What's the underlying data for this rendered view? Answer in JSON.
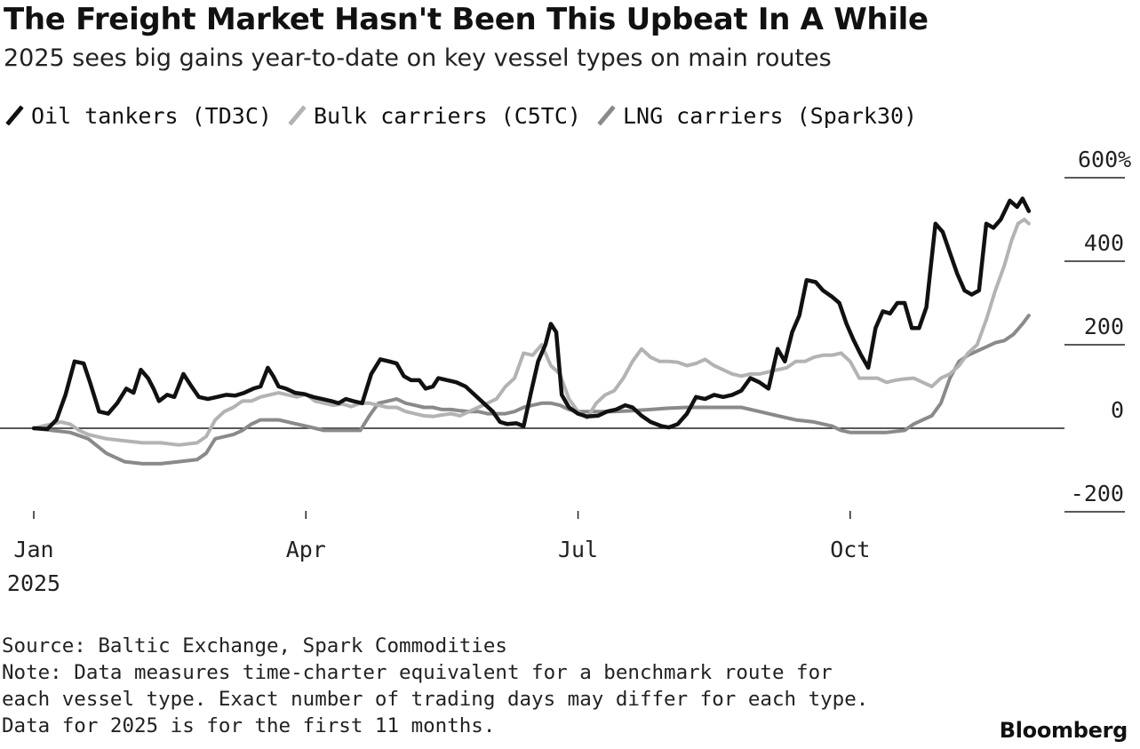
{
  "header": {
    "title": "The Freight Market Hasn't Been This Upbeat In A While",
    "subtitle": "2025 sees big gains year-to-date on key vessel types on main routes"
  },
  "footer": {
    "source": "Source: Baltic Exchange, Spark Commodities",
    "note_lines": [
      "Note: Data measures time-charter equivalent for a benchmark route for",
      "each vessel type. Exact number of trading days may differ for each type.",
      "Data for 2025 is for the first 11 months."
    ],
    "brand": "Bloomberg"
  },
  "chart_data": {
    "type": "line",
    "title": "The Freight Market Hasn't Been This Upbeat In A While",
    "subtitle": "2025 sees big gains year-to-date on key vessel types on main routes",
    "ylabel": "%",
    "ylim": [
      -200,
      600
    ],
    "yticks": [
      -200,
      0,
      200,
      400,
      600
    ],
    "ytick_labels": [
      "-200",
      "0",
      "200",
      "400",
      "600%"
    ],
    "xlim": [
      0,
      11
    ],
    "xticks": [
      0,
      3,
      6,
      9
    ],
    "xtick_labels": [
      "Jan",
      "Apr",
      "Jul",
      "Oct"
    ],
    "xtick_sublabels": [
      "2025",
      "",
      "",
      ""
    ],
    "legend_position": "top-left",
    "series": [
      {
        "name": "Oil tankers (TD3C)",
        "color": "#111111",
        "points": [
          [
            0.0,
            0
          ],
          [
            0.15,
            -2
          ],
          [
            0.25,
            20
          ],
          [
            0.35,
            80
          ],
          [
            0.45,
            160
          ],
          [
            0.55,
            155
          ],
          [
            0.62,
            110
          ],
          [
            0.72,
            40
          ],
          [
            0.82,
            35
          ],
          [
            0.92,
            60
          ],
          [
            1.02,
            95
          ],
          [
            1.1,
            85
          ],
          [
            1.18,
            140
          ],
          [
            1.26,
            120
          ],
          [
            1.32,
            95
          ],
          [
            1.38,
            65
          ],
          [
            1.47,
            80
          ],
          [
            1.55,
            75
          ],
          [
            1.65,
            130
          ],
          [
            1.74,
            100
          ],
          [
            1.82,
            75
          ],
          [
            1.92,
            70
          ],
          [
            2.02,
            75
          ],
          [
            2.12,
            80
          ],
          [
            2.22,
            78
          ],
          [
            2.32,
            85
          ],
          [
            2.42,
            95
          ],
          [
            2.5,
            100
          ],
          [
            2.58,
            145
          ],
          [
            2.64,
            125
          ],
          [
            2.7,
            100
          ],
          [
            2.78,
            95
          ],
          [
            2.88,
            85
          ],
          [
            2.98,
            82
          ],
          [
            3.08,
            75
          ],
          [
            3.18,
            70
          ],
          [
            3.28,
            65
          ],
          [
            3.36,
            60
          ],
          [
            3.44,
            70
          ],
          [
            3.52,
            65
          ],
          [
            3.62,
            60
          ],
          [
            3.72,
            130
          ],
          [
            3.82,
            165
          ],
          [
            3.92,
            160
          ],
          [
            4.0,
            155
          ],
          [
            4.08,
            125
          ],
          [
            4.16,
            115
          ],
          [
            4.25,
            115
          ],
          [
            4.32,
            95
          ],
          [
            4.4,
            100
          ],
          [
            4.46,
            120
          ],
          [
            4.56,
            115
          ],
          [
            4.66,
            110
          ],
          [
            4.76,
            100
          ],
          [
            4.86,
            80
          ],
          [
            4.96,
            60
          ],
          [
            5.06,
            40
          ],
          [
            5.14,
            15
          ],
          [
            5.22,
            10
          ],
          [
            5.32,
            12
          ],
          [
            5.4,
            5
          ],
          [
            5.48,
            85
          ],
          [
            5.56,
            160
          ],
          [
            5.64,
            200
          ],
          [
            5.7,
            250
          ],
          [
            5.76,
            230
          ],
          [
            5.82,
            80
          ],
          [
            5.9,
            50
          ],
          [
            6.0,
            35
          ],
          [
            6.1,
            28
          ],
          [
            6.22,
            30
          ],
          [
            6.32,
            40
          ],
          [
            6.42,
            45
          ],
          [
            6.52,
            55
          ],
          [
            6.6,
            50
          ],
          [
            6.7,
            30
          ],
          [
            6.8,
            15
          ],
          [
            6.92,
            5
          ],
          [
            7.0,
            2
          ],
          [
            7.1,
            10
          ],
          [
            7.2,
            35
          ],
          [
            7.3,
            75
          ],
          [
            7.4,
            70
          ],
          [
            7.5,
            80
          ],
          [
            7.6,
            75
          ],
          [
            7.7,
            80
          ],
          [
            7.8,
            90
          ],
          [
            7.9,
            120
          ],
          [
            8.0,
            110
          ],
          [
            8.1,
            95
          ],
          [
            8.2,
            190
          ],
          [
            8.28,
            160
          ],
          [
            8.36,
            230
          ],
          [
            8.44,
            270
          ],
          [
            8.52,
            355
          ],
          [
            8.62,
            350
          ],
          [
            8.7,
            330
          ],
          [
            8.8,
            315
          ],
          [
            8.88,
            300
          ],
          [
            8.96,
            250
          ],
          [
            9.04,
            210
          ],
          [
            9.12,
            175
          ],
          [
            9.2,
            145
          ],
          [
            9.28,
            240
          ],
          [
            9.36,
            280
          ],
          [
            9.44,
            275
          ],
          [
            9.52,
            300
          ],
          [
            9.6,
            300
          ],
          [
            9.68,
            240
          ],
          [
            9.76,
            240
          ],
          [
            9.84,
            290
          ],
          [
            9.94,
            490
          ],
          [
            10.02,
            470
          ],
          [
            10.1,
            420
          ],
          [
            10.18,
            370
          ],
          [
            10.26,
            330
          ],
          [
            10.34,
            320
          ],
          [
            10.42,
            330
          ],
          [
            10.5,
            490
          ],
          [
            10.58,
            480
          ],
          [
            10.66,
            500
          ],
          [
            10.76,
            545
          ],
          [
            10.84,
            530
          ],
          [
            10.9,
            550
          ],
          [
            10.97,
            520
          ]
        ]
      },
      {
        "name": "Bulk carriers (C5TC)",
        "color": "#b3b3b3",
        "points": [
          [
            0.0,
            0
          ],
          [
            0.1,
            5
          ],
          [
            0.3,
            15
          ],
          [
            0.4,
            10
          ],
          [
            0.5,
            -5
          ],
          [
            0.6,
            -15
          ],
          [
            0.8,
            -25
          ],
          [
            1.0,
            -30
          ],
          [
            1.2,
            -35
          ],
          [
            1.4,
            -35
          ],
          [
            1.6,
            -40
          ],
          [
            1.8,
            -35
          ],
          [
            1.9,
            -20
          ],
          [
            2.0,
            20
          ],
          [
            2.1,
            40
          ],
          [
            2.2,
            50
          ],
          [
            2.3,
            65
          ],
          [
            2.4,
            65
          ],
          [
            2.5,
            75
          ],
          [
            2.6,
            80
          ],
          [
            2.7,
            85
          ],
          [
            2.8,
            80
          ],
          [
            2.9,
            75
          ],
          [
            3.0,
            82
          ],
          [
            3.1,
            65
          ],
          [
            3.2,
            60
          ],
          [
            3.3,
            55
          ],
          [
            3.4,
            58
          ],
          [
            3.5,
            52
          ],
          [
            3.6,
            60
          ],
          [
            3.7,
            60
          ],
          [
            3.8,
            55
          ],
          [
            3.9,
            50
          ],
          [
            4.0,
            50
          ],
          [
            4.1,
            40
          ],
          [
            4.2,
            35
          ],
          [
            4.3,
            30
          ],
          [
            4.4,
            28
          ],
          [
            4.5,
            32
          ],
          [
            4.6,
            35
          ],
          [
            4.7,
            30
          ],
          [
            4.8,
            40
          ],
          [
            4.9,
            50
          ],
          [
            5.0,
            60
          ],
          [
            5.1,
            70
          ],
          [
            5.2,
            100
          ],
          [
            5.3,
            120
          ],
          [
            5.4,
            180
          ],
          [
            5.5,
            175
          ],
          [
            5.6,
            200
          ],
          [
            5.7,
            150
          ],
          [
            5.8,
            130
          ],
          [
            5.9,
            70
          ],
          [
            6.0,
            40
          ],
          [
            6.1,
            25
          ],
          [
            6.2,
            60
          ],
          [
            6.3,
            80
          ],
          [
            6.4,
            90
          ],
          [
            6.5,
            120
          ],
          [
            6.6,
            160
          ],
          [
            6.7,
            190
          ],
          [
            6.8,
            170
          ],
          [
            6.9,
            160
          ],
          [
            7.0,
            160
          ],
          [
            7.1,
            158
          ],
          [
            7.2,
            150
          ],
          [
            7.3,
            155
          ],
          [
            7.4,
            165
          ],
          [
            7.5,
            150
          ],
          [
            7.6,
            140
          ],
          [
            7.7,
            130
          ],
          [
            7.8,
            125
          ],
          [
            7.9,
            130
          ],
          [
            8.0,
            130
          ],
          [
            8.1,
            135
          ],
          [
            8.2,
            140
          ],
          [
            8.3,
            145
          ],
          [
            8.4,
            160
          ],
          [
            8.5,
            160
          ],
          [
            8.6,
            170
          ],
          [
            8.7,
            175
          ],
          [
            8.8,
            175
          ],
          [
            8.9,
            180
          ],
          [
            9.0,
            160
          ],
          [
            9.1,
            120
          ],
          [
            9.2,
            120
          ],
          [
            9.3,
            120
          ],
          [
            9.4,
            110
          ],
          [
            9.5,
            115
          ],
          [
            9.6,
            118
          ],
          [
            9.7,
            120
          ],
          [
            9.8,
            110
          ],
          [
            9.9,
            100
          ],
          [
            10.0,
            120
          ],
          [
            10.1,
            130
          ],
          [
            10.2,
            150
          ],
          [
            10.3,
            180
          ],
          [
            10.4,
            200
          ],
          [
            10.5,
            260
          ],
          [
            10.6,
            330
          ],
          [
            10.7,
            390
          ],
          [
            10.78,
            450
          ],
          [
            10.85,
            490
          ],
          [
            10.92,
            500
          ],
          [
            10.97,
            490
          ]
        ]
      },
      {
        "name": "LNG carriers (Spark30)",
        "color": "#8a8a8a",
        "points": [
          [
            0.0,
            0
          ],
          [
            0.2,
            -5
          ],
          [
            0.4,
            -10
          ],
          [
            0.6,
            -25
          ],
          [
            0.8,
            -60
          ],
          [
            1.0,
            -80
          ],
          [
            1.2,
            -85
          ],
          [
            1.4,
            -85
          ],
          [
            1.6,
            -80
          ],
          [
            1.8,
            -75
          ],
          [
            1.9,
            -60
          ],
          [
            2.0,
            -25
          ],
          [
            2.1,
            -20
          ],
          [
            2.2,
            -15
          ],
          [
            2.3,
            -5
          ],
          [
            2.4,
            10
          ],
          [
            2.5,
            20
          ],
          [
            2.6,
            20
          ],
          [
            2.7,
            20
          ],
          [
            2.8,
            15
          ],
          [
            2.9,
            10
          ],
          [
            3.0,
            5
          ],
          [
            3.1,
            0
          ],
          [
            3.2,
            -5
          ],
          [
            3.3,
            -5
          ],
          [
            3.4,
            -5
          ],
          [
            3.5,
            -5
          ],
          [
            3.6,
            -5
          ],
          [
            3.7,
            30
          ],
          [
            3.8,
            60
          ],
          [
            3.9,
            65
          ],
          [
            4.0,
            70
          ],
          [
            4.1,
            60
          ],
          [
            4.2,
            55
          ],
          [
            4.3,
            50
          ],
          [
            4.4,
            50
          ],
          [
            4.5,
            45
          ],
          [
            4.6,
            45
          ],
          [
            4.7,
            42
          ],
          [
            4.8,
            40
          ],
          [
            4.9,
            40
          ],
          [
            5.0,
            35
          ],
          [
            5.1,
            35
          ],
          [
            5.2,
            35
          ],
          [
            5.3,
            40
          ],
          [
            5.4,
            50
          ],
          [
            5.5,
            55
          ],
          [
            5.6,
            60
          ],
          [
            5.7,
            60
          ],
          [
            5.8,
            55
          ],
          [
            5.9,
            45
          ],
          [
            6.0,
            40
          ],
          [
            6.1,
            40
          ],
          [
            6.2,
            40
          ],
          [
            6.4,
            40
          ],
          [
            6.6,
            42
          ],
          [
            6.8,
            45
          ],
          [
            7.0,
            48
          ],
          [
            7.2,
            50
          ],
          [
            7.4,
            50
          ],
          [
            7.6,
            50
          ],
          [
            7.8,
            50
          ],
          [
            8.0,
            40
          ],
          [
            8.2,
            30
          ],
          [
            8.4,
            20
          ],
          [
            8.6,
            15
          ],
          [
            8.8,
            5
          ],
          [
            8.9,
            -5
          ],
          [
            9.0,
            -10
          ],
          [
            9.2,
            -10
          ],
          [
            9.4,
            -10
          ],
          [
            9.6,
            -5
          ],
          [
            9.7,
            10
          ],
          [
            9.8,
            20
          ],
          [
            9.9,
            30
          ],
          [
            10.0,
            60
          ],
          [
            10.1,
            120
          ],
          [
            10.2,
            160
          ],
          [
            10.3,
            175
          ],
          [
            10.4,
            185
          ],
          [
            10.5,
            195
          ],
          [
            10.6,
            205
          ],
          [
            10.7,
            210
          ],
          [
            10.8,
            225
          ],
          [
            10.9,
            250
          ],
          [
            10.97,
            270
          ]
        ]
      }
    ]
  }
}
